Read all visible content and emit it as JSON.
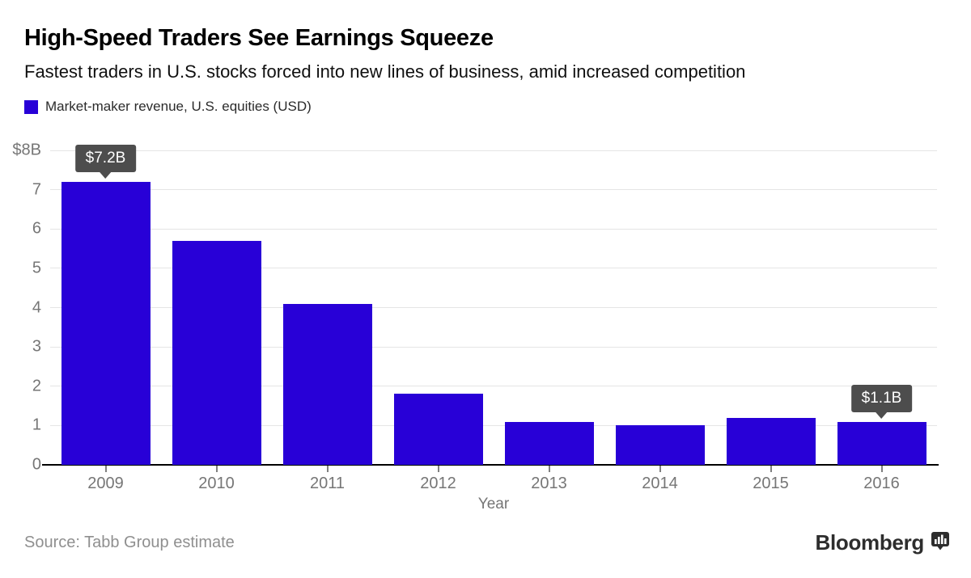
{
  "header": {
    "title": "High-Speed Traders See Earnings Squeeze",
    "subtitle": "Fastest traders in U.S. stocks forced into new lines of business, amid increased competition"
  },
  "legend": {
    "label": "Market-maker revenue, U.S. equities (USD)",
    "swatch_color": "#2800D7"
  },
  "chart_data": {
    "type": "bar",
    "title": "Market-maker revenue, U.S. equities (USD)",
    "categories": [
      "2009",
      "2010",
      "2011",
      "2012",
      "2013",
      "2014",
      "2015",
      "2016"
    ],
    "values": [
      7.2,
      5.7,
      4.1,
      1.8,
      1.1,
      1.0,
      1.2,
      1.1
    ],
    "xlabel": "Year",
    "ylabel": "",
    "ylim": [
      0,
      8
    ],
    "yticks": [
      {
        "value": 0,
        "label": "0"
      },
      {
        "value": 1,
        "label": "1"
      },
      {
        "value": 2,
        "label": "2"
      },
      {
        "value": 3,
        "label": "3"
      },
      {
        "value": 4,
        "label": "4"
      },
      {
        "value": 5,
        "label": "5"
      },
      {
        "value": 6,
        "label": "6"
      },
      {
        "value": 7,
        "label": "7"
      },
      {
        "value": 8,
        "label": "$8B"
      }
    ],
    "grid": "horizontal",
    "legend_position": "top-left",
    "bar_color": "#2800D7",
    "annotations": [
      {
        "category": "2009",
        "label": "$7.2B"
      },
      {
        "category": "2016",
        "label": "$1.1B"
      }
    ],
    "annotation_bg": "#4D4D4D",
    "annotation_text_color": "#FFFFFF"
  },
  "footer": {
    "source": "Source: Tabb Group estimate",
    "brand": "Bloomberg",
    "brand_color": "#2D2D2D",
    "brand_icon": "bloomberg-chart-bubble-icon"
  }
}
